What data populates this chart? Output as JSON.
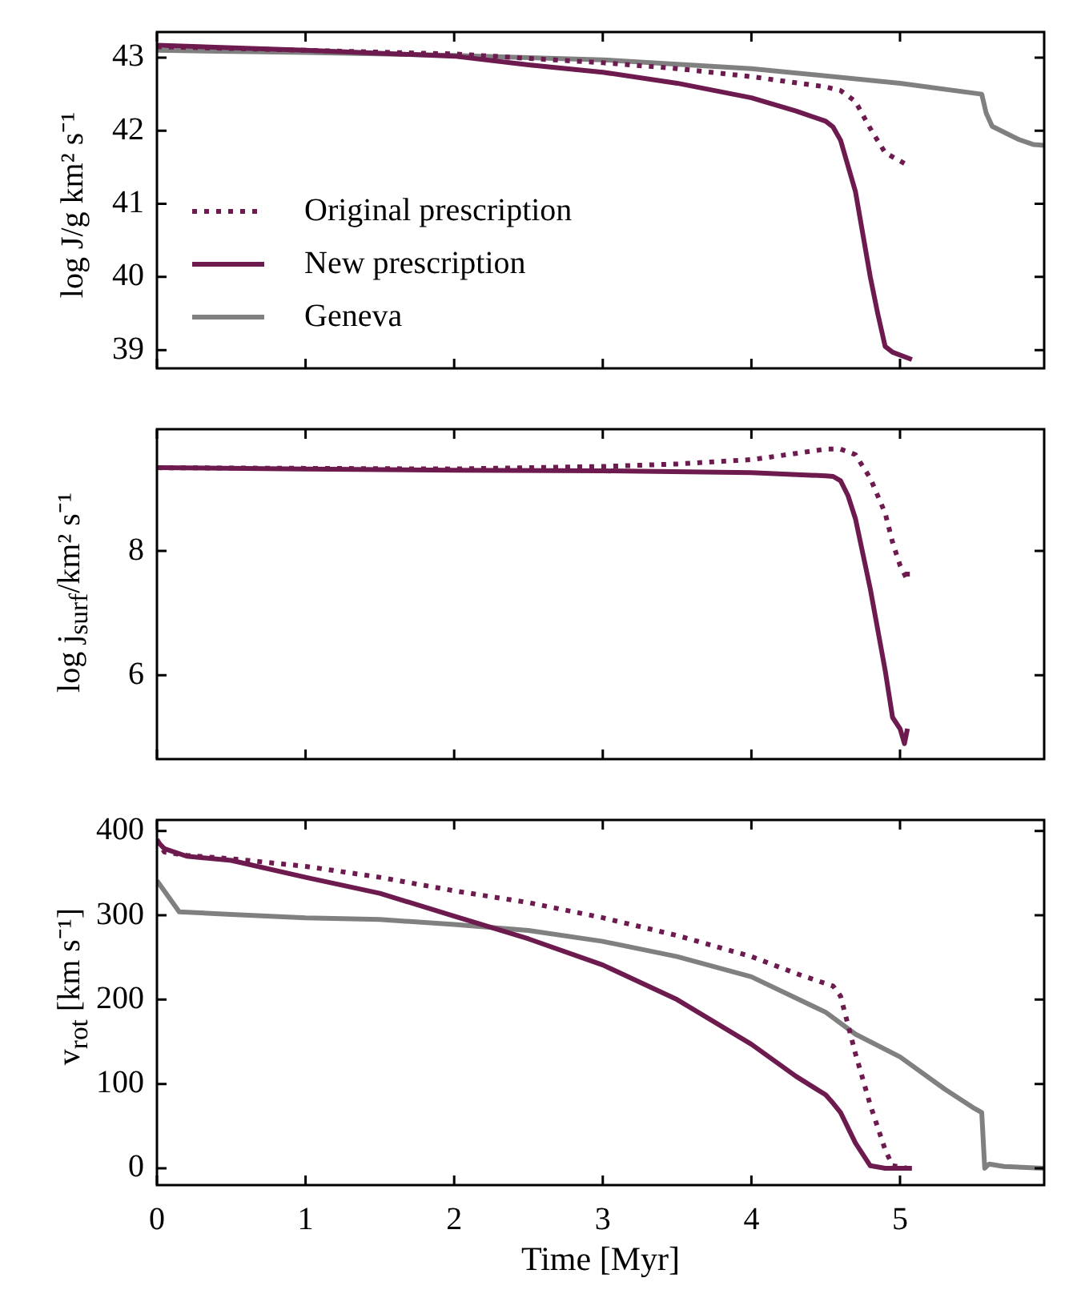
{
  "chart_data": [
    {
      "type": "line",
      "ylabel": "log J/g km² s⁻¹",
      "xlim": [
        0,
        5.97
      ],
      "xticks": [
        0,
        1,
        2,
        3,
        4,
        5
      ],
      "ylim": [
        38.75,
        43.35
      ],
      "yticks": [
        39,
        40,
        41,
        42,
        43
      ],
      "tick_labels": "y",
      "legend": "bottom left",
      "series": [
        {
          "name": "Original prescription",
          "color": "#6d1a4f",
          "line_style": "dotted",
          "x": [
            0,
            1,
            2,
            3,
            3.5,
            4,
            4.5,
            4.6,
            4.7,
            4.8,
            4.9,
            5.05
          ],
          "values": [
            43.15,
            43.1,
            43.05,
            42.93,
            42.85,
            42.74,
            42.6,
            42.55,
            42.4,
            42.03,
            41.7,
            41.53
          ]
        },
        {
          "name": "New prescription",
          "color": "#6d1a4f",
          "line_style": "solid",
          "x": [
            0,
            1,
            2,
            2.5,
            3,
            3.5,
            4,
            4.3,
            4.5,
            4.55,
            4.6,
            4.7,
            4.8,
            4.85,
            4.9,
            4.95,
            5.08
          ],
          "values": [
            43.17,
            43.1,
            43.02,
            42.9,
            42.8,
            42.65,
            42.45,
            42.27,
            42.13,
            42.05,
            41.87,
            41.17,
            40.0,
            39.5,
            39.05,
            38.97,
            38.87
          ]
        },
        {
          "name": "Geneva",
          "color": "#808080",
          "line_style": "solid",
          "x": [
            0,
            1,
            2,
            3,
            4,
            5,
            5.55,
            5.58,
            5.62,
            5.8,
            5.9,
            5.97
          ],
          "values": [
            43.1,
            43.07,
            43.03,
            42.97,
            42.85,
            42.65,
            42.5,
            42.24,
            42.06,
            41.88,
            41.81,
            41.8
          ]
        }
      ]
    },
    {
      "type": "line",
      "ylabel": "log j$_{surf}$/km² s⁻¹",
      "xlim": [
        0,
        5.97
      ],
      "xticks": [
        0,
        1,
        2,
        3,
        4,
        5
      ],
      "ylim": [
        4.65,
        9.96
      ],
      "yticks": [
        6,
        8
      ],
      "tick_labels": "y",
      "series": [
        {
          "color": "#6d1a4f",
          "line_style": "dotted",
          "x": [
            0,
            1,
            2,
            3,
            3.5,
            4,
            4.3,
            4.5,
            4.6,
            4.7,
            4.8,
            4.9,
            4.95,
            5.0,
            5.05,
            5.05
          ],
          "values": [
            9.34,
            9.33,
            9.32,
            9.36,
            9.4,
            9.47,
            9.57,
            9.64,
            9.64,
            9.55,
            9.17,
            8.61,
            8.14,
            7.77,
            7.53,
            7.72
          ]
        },
        {
          "color": "#6d1a4f",
          "line_style": "solid",
          "x": [
            0,
            1,
            2,
            3,
            4,
            4.5,
            4.55,
            4.6,
            4.65,
            4.7,
            4.8,
            4.9,
            4.95,
            5.0,
            5.03,
            5.05
          ],
          "values": [
            9.34,
            9.32,
            9.3,
            9.29,
            9.26,
            9.21,
            9.2,
            9.13,
            8.89,
            8.52,
            7.39,
            6.08,
            5.32,
            5.14,
            4.9,
            5.14
          ]
        }
      ]
    },
    {
      "type": "line",
      "ylabel": "v$_{rot}$ [km s⁻¹]",
      "xlabel": "Time [Myr]",
      "xlim": [
        0,
        5.97
      ],
      "xticks": [
        0,
        1,
        2,
        3,
        4,
        5
      ],
      "ylim": [
        -20,
        413
      ],
      "yticks": [
        0,
        100,
        200,
        300,
        400
      ],
      "series": [
        {
          "color": "#6d1a4f",
          "line_style": "dotted",
          "x": [
            0,
            0.05,
            0.2,
            0.5,
            1,
            1.5,
            2,
            2.5,
            3,
            3.5,
            4,
            4.3,
            4.5,
            4.55,
            4.6,
            4.7,
            4.8,
            4.9,
            4.95,
            5.05
          ],
          "values": [
            390,
            375,
            371,
            367,
            358,
            345,
            329,
            315,
            297,
            276,
            251,
            231,
            219,
            216,
            204,
            136,
            75,
            22,
            3,
            0
          ]
        },
        {
          "color": "#6d1a4f",
          "line_style": "solid",
          "x": [
            0,
            0.05,
            0.2,
            0.5,
            1,
            1.5,
            2,
            2.5,
            3,
            3.5,
            4,
            4.3,
            4.5,
            4.55,
            4.6,
            4.7,
            4.8,
            4.9,
            5.08
          ],
          "values": [
            388,
            379,
            370,
            365,
            345,
            326,
            299,
            272,
            241,
            200,
            147,
            109,
            87,
            77,
            66,
            30,
            3,
            0,
            0
          ]
        },
        {
          "color": "#808080",
          "line_style": "solid",
          "x": [
            0,
            0.15,
            0.5,
            1,
            1.5,
            2,
            2.5,
            3,
            3.5,
            4,
            4.5,
            4.7,
            5,
            5.3,
            5.5,
            5.55,
            5.57,
            5.6,
            5.7,
            5.97
          ],
          "values": [
            341,
            304,
            301,
            297,
            295,
            289,
            282,
            269,
            251,
            227,
            185,
            159,
            132,
            94,
            71,
            66,
            0,
            5,
            2,
            0
          ]
        }
      ]
    }
  ]
}
